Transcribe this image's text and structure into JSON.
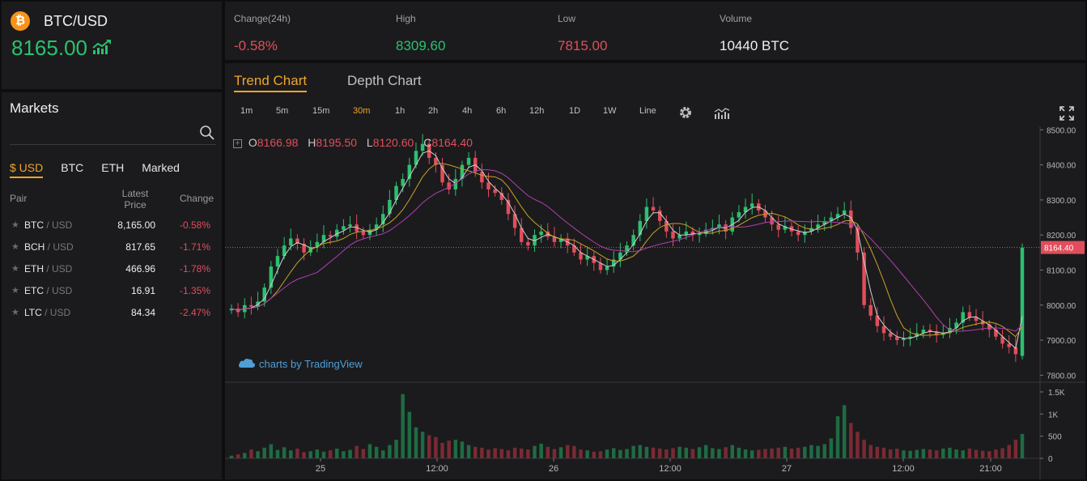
{
  "ticker": {
    "coin_icon": "bitcoin-icon",
    "coin_glyph": "₿",
    "pair": "BTC/USD",
    "price": "8165.00",
    "trend_icon": "trend-up-icon",
    "price_color": "#2bc16e"
  },
  "stats": {
    "change": {
      "label": "Change(24h)",
      "value": "-0.58%",
      "color": "#e04e5b"
    },
    "high": {
      "label": "High",
      "value": "8309.60",
      "color": "#2bc16e"
    },
    "low": {
      "label": "Low",
      "value": "7815.00",
      "color": "#e04e5b"
    },
    "volume": {
      "label": "Volume",
      "value": "10440 BTC",
      "color": "#f0f0f0"
    }
  },
  "markets": {
    "title": "Markets",
    "search_icon": "search-icon",
    "tabs": [
      "$ USD",
      "BTC",
      "ETH",
      "Marked"
    ],
    "active_tab": "$ USD",
    "headers": {
      "pair": "Pair",
      "latest": "Latest",
      "price": "Price",
      "change": "Change"
    },
    "rows": [
      {
        "symbol": "BTC",
        "quote": " / USD",
        "price": "8,165.00",
        "change": "-0.58%"
      },
      {
        "symbol": "BCH",
        "quote": " / USD",
        "price": "817.65",
        "change": "-1.71%"
      },
      {
        "symbol": "ETH",
        "quote": " / USD",
        "price": "466.96",
        "change": "-1.78%"
      },
      {
        "symbol": "ETC",
        "quote": " / USD",
        "price": "16.91",
        "change": "-1.35%"
      },
      {
        "symbol": "LTC",
        "quote": " / USD",
        "price": "84.34",
        "change": "-2.47%"
      }
    ],
    "star_icon": "star-icon",
    "accent": "#f0a52b",
    "down_color": "#e04e5b"
  },
  "chart_tabs": {
    "trend": "Trend Chart",
    "depth": "Depth Chart",
    "active": "Trend Chart"
  },
  "intervals": [
    "1m",
    "5m",
    "15m",
    "30m",
    "1h",
    "2h",
    "4h",
    "6h",
    "12h",
    "1D",
    "1W",
    "Line"
  ],
  "active_interval": "30m",
  "toolbar_icons": [
    "gear-icon",
    "indicators-icon",
    "fullscreen-icon"
  ],
  "ohlc": {
    "o_label": "O",
    "o": "8166.98",
    "h_label": "H",
    "h": "8195.50",
    "l_label": "L",
    "l": "8120.60",
    "c_label": "C",
    "c": "8164.40"
  },
  "attribution": "charts by TradingView",
  "attribution_icon": "tradingview-cloud-icon",
  "chart_data": {
    "type": "candlestick",
    "price_axis": {
      "ticks": [
        "8500.00",
        "8400.00",
        "8300.00",
        "8200.00",
        "8100.00",
        "8000.00",
        "7900.00",
        "7800.00"
      ],
      "range": [
        7780,
        8510
      ]
    },
    "last_price": "8164.40",
    "volume_axis": {
      "ticks": [
        "1.5K",
        "1K",
        "500",
        "0"
      ],
      "range": [
        0,
        1500
      ]
    },
    "time_labels": [
      "25",
      "12:00",
      "26",
      "12:00",
      "27",
      "12:00",
      "21:00"
    ],
    "up_color": "#2bc16e",
    "down_color": "#e04e5b",
    "ma_colors": [
      "#cfcfcf",
      "#c9a227",
      "#b03fb0"
    ],
    "close": [
      7990,
      7980,
      8000,
      7995,
      8010,
      8050,
      8110,
      8140,
      8170,
      8190,
      8175,
      8150,
      8165,
      8180,
      8200,
      8195,
      8215,
      8225,
      8230,
      8210,
      8200,
      8215,
      8230,
      8260,
      8300,
      8340,
      8360,
      8400,
      8440,
      8460,
      8420,
      8400,
      8350,
      8330,
      8360,
      8400,
      8420,
      8380,
      8350,
      8330,
      8320,
      8300,
      8260,
      8220,
      8180,
      8170,
      8200,
      8210,
      8195,
      8180,
      8190,
      8170,
      8150,
      8130,
      8140,
      8120,
      8100,
      8110,
      8130,
      8150,
      8170,
      8200,
      8240,
      8280,
      8270,
      8240,
      8210,
      8190,
      8200,
      8210,
      8200,
      8205,
      8215,
      8220,
      8230,
      8210,
      8250,
      8265,
      8280,
      8290,
      8270,
      8250,
      8230,
      8215,
      8225,
      8210,
      8200,
      8210,
      8220,
      8230,
      8240,
      8250,
      8260,
      8270,
      8220,
      8150,
      8000,
      7970,
      7940,
      7920,
      7910,
      7900,
      7905,
      7910,
      7920,
      7930,
      7925,
      7915,
      7920,
      7935,
      7950,
      7980,
      7965,
      7955,
      7945,
      7930,
      7910,
      7890,
      7880,
      7860,
      8164
    ],
    "volume": [
      60,
      90,
      120,
      200,
      160,
      240,
      320,
      190,
      250,
      180,
      220,
      140,
      160,
      200,
      150,
      180,
      220,
      160,
      190,
      280,
      210,
      320,
      260,
      180,
      300,
      420,
      1450,
      1050,
      700,
      600,
      520,
      480,
      350,
      400,
      420,
      380,
      300,
      260,
      240,
      200,
      230,
      210,
      180,
      240,
      220,
      200,
      280,
      330,
      260,
      210,
      250,
      300,
      280,
      200,
      180,
      150,
      160,
      200,
      230,
      190,
      210,
      280,
      300,
      260,
      240,
      220,
      200,
      230,
      260,
      240,
      210,
      250,
      300,
      230,
      210,
      250,
      300,
      240,
      200,
      180,
      190,
      210,
      220,
      240,
      260,
      220,
      240,
      260,
      300,
      280,
      320,
      450,
      950,
      1200,
      800,
      600,
      420,
      300,
      260,
      240,
      200,
      220,
      180,
      170,
      190,
      210,
      200,
      180,
      220,
      240,
      200,
      180,
      220,
      190,
      170,
      160,
      200,
      230,
      300,
      420,
      550
    ]
  }
}
